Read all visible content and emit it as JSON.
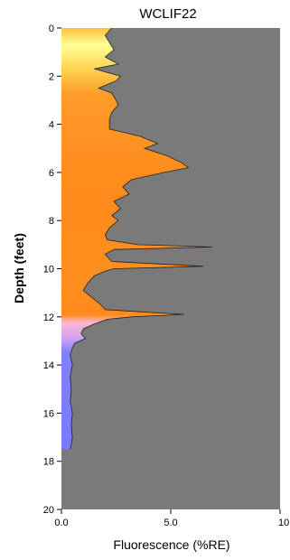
{
  "chart_data": {
    "type": "area",
    "title": "WCLIF22",
    "xlabel": "Fluorescence (%RE)",
    "ylabel": "Depth (feet)",
    "xlim": [
      0,
      10
    ],
    "ylim": [
      0,
      20
    ],
    "y_inverted": true,
    "x_ticks": [
      "0.0",
      "5.0",
      "10.0"
    ],
    "y_ticks": [
      "0",
      "2",
      "4",
      "6",
      "8",
      "10",
      "12",
      "14",
      "16",
      "18",
      "20"
    ],
    "plot_background": "#7a7a7a",
    "fill_color_scale": [
      "#ffff99",
      "#ffd24d",
      "#ff8a1c",
      "#ffb6d6",
      "#8080ff"
    ],
    "series": [
      {
        "depth": [
          0.0,
          0.3,
          0.6,
          0.9,
          1.2,
          1.5,
          1.7,
          2.0,
          2.2,
          2.5,
          2.7,
          3.0,
          3.2,
          3.5,
          3.8,
          4.2,
          4.5,
          4.8,
          5.0,
          5.3,
          5.6,
          5.8,
          6.0,
          6.3,
          6.6,
          6.9,
          7.2,
          7.5,
          7.8,
          8.0,
          8.3,
          8.6,
          8.8,
          9.0,
          9.1,
          9.2,
          9.4,
          9.7,
          9.9,
          10.0,
          10.1,
          10.3,
          10.6,
          10.9,
          11.2,
          11.5,
          11.7,
          11.9,
          12.0,
          12.1,
          12.3,
          12.5,
          12.7,
          12.9,
          13.1,
          13.3,
          13.6,
          14.0,
          14.5,
          15.0,
          15.5,
          16.0,
          16.5,
          17.0,
          17.3,
          17.5
        ],
        "fluorescence": [
          2.3,
          2.0,
          2.2,
          2.4,
          2.0,
          2.6,
          1.5,
          2.7,
          2.5,
          1.7,
          2.3,
          2.5,
          2.6,
          2.3,
          2.2,
          2.2,
          3.6,
          4.4,
          3.8,
          4.8,
          5.5,
          5.8,
          4.7,
          3.2,
          2.8,
          3.1,
          2.4,
          2.7,
          2.3,
          2.6,
          2.2,
          2.0,
          2.1,
          3.5,
          6.9,
          2.4,
          2.0,
          2.3,
          6.5,
          2.4,
          2.0,
          1.5,
          1.2,
          1.0,
          1.4,
          1.8,
          2.0,
          5.6,
          3.2,
          2.1,
          1.5,
          1.0,
          0.9,
          1.1,
          0.6,
          0.5,
          0.4,
          0.5,
          0.4,
          0.45,
          0.4,
          0.5,
          0.45,
          0.5,
          0.45,
          0.4
        ]
      }
    ]
  }
}
